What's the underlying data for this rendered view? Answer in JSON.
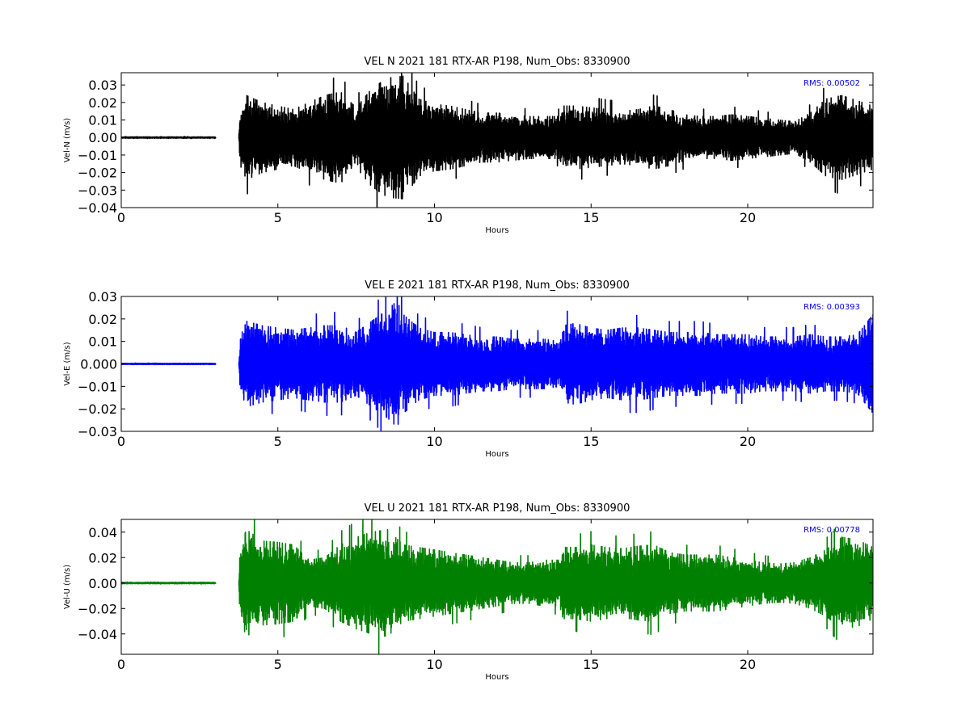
{
  "chart_data": [
    {
      "type": "line",
      "title": "VEL N 2021 181 RTX-AR  P198, Num_Obs: 8330900",
      "xlabel": "Hours",
      "ylabel": "Vel-N (m/s)",
      "xlim": [
        0,
        24
      ],
      "ylim": [
        -0.04,
        0.037
      ],
      "xticks": [
        0,
        5,
        10,
        15,
        20
      ],
      "xtick_labels": [
        "0",
        "5",
        "10",
        "15",
        "20"
      ],
      "yticks": [
        -0.04,
        -0.03,
        -0.02,
        -0.01,
        0.0,
        0.01,
        0.02,
        0.03
      ],
      "ytick_labels": [
        "−0.04",
        "−0.03",
        "−0.02",
        "−0.01",
        "0.00",
        "0.01",
        "0.02",
        "0.03"
      ],
      "color": "#000000",
      "rms_label": "RMS:  0.00502",
      "rms_color": "#0000ff",
      "grid": false,
      "envelope": {
        "x": [
          0,
          3.0,
          3.02,
          3.75,
          3.8,
          4.0,
          4.5,
          5.0,
          5.5,
          6.0,
          6.5,
          7.0,
          7.5,
          8.0,
          8.5,
          9.0,
          9.5,
          10.0,
          10.5,
          11.0,
          11.5,
          12.0,
          12.5,
          13.0,
          13.5,
          14.0,
          14.1,
          14.5,
          15.0,
          15.5,
          16.0,
          16.5,
          17.0,
          17.5,
          18.0,
          18.5,
          19.0,
          19.5,
          20.0,
          20.5,
          21.0,
          21.5,
          22.0,
          22.5,
          23.0,
          23.5,
          24.0
        ],
        "amp": [
          0.0004,
          0.0004,
          0,
          0,
          0.016,
          0.024,
          0.02,
          0.018,
          0.016,
          0.02,
          0.024,
          0.026,
          0.017,
          0.028,
          0.034,
          0.035,
          0.022,
          0.019,
          0.018,
          0.016,
          0.014,
          0.014,
          0.013,
          0.012,
          0.012,
          0.012,
          0.018,
          0.018,
          0.017,
          0.016,
          0.015,
          0.016,
          0.018,
          0.016,
          0.013,
          0.012,
          0.012,
          0.013,
          0.012,
          0.011,
          0.01,
          0.009,
          0.014,
          0.022,
          0.024,
          0.021,
          0.018
        ]
      }
    },
    {
      "type": "line",
      "title": "VEL E 2021 181 RTX-AR  P198, Num_Obs: 8330900",
      "xlabel": "Hours",
      "ylabel": "Vel-E (m/s)",
      "xlim": [
        0,
        24
      ],
      "ylim": [
        -0.03,
        0.03
      ],
      "xticks": [
        0,
        5,
        10,
        15,
        20
      ],
      "xtick_labels": [
        "0",
        "5",
        "10",
        "15",
        "20"
      ],
      "yticks": [
        -0.03,
        -0.02,
        -0.01,
        0.0,
        0.01,
        0.02,
        0.03
      ],
      "ytick_labels": [
        "−0.03",
        "−0.02",
        "−0.01",
        "0.000",
        "0.01",
        "0.02",
        "0.03"
      ],
      "color": "#0000ff",
      "rms_label": "RMS:  0.00393",
      "rms_color": "#0000ff",
      "grid": false,
      "envelope": {
        "x": [
          0,
          3.0,
          3.02,
          3.75,
          3.8,
          4.0,
          4.5,
          5.0,
          5.5,
          6.0,
          6.5,
          7.0,
          7.5,
          8.0,
          8.5,
          8.8,
          9.0,
          9.5,
          10.0,
          10.5,
          11.0,
          11.5,
          12.0,
          12.5,
          13.0,
          13.5,
          14.0,
          14.1,
          14.5,
          15.0,
          15.5,
          16.0,
          16.5,
          17.0,
          17.5,
          18.0,
          18.5,
          19.0,
          19.5,
          20.0,
          20.5,
          21.0,
          21.5,
          22.0,
          22.5,
          23.0,
          23.5,
          24.0
        ],
        "amp": [
          0.0003,
          0.0003,
          0,
          0,
          0.012,
          0.019,
          0.017,
          0.016,
          0.015,
          0.016,
          0.017,
          0.017,
          0.014,
          0.019,
          0.024,
          0.028,
          0.022,
          0.016,
          0.014,
          0.014,
          0.013,
          0.012,
          0.012,
          0.011,
          0.011,
          0.011,
          0.01,
          0.017,
          0.018,
          0.016,
          0.015,
          0.016,
          0.016,
          0.015,
          0.014,
          0.014,
          0.014,
          0.013,
          0.013,
          0.013,
          0.012,
          0.012,
          0.012,
          0.013,
          0.012,
          0.012,
          0.013,
          0.022
        ]
      }
    },
    {
      "type": "line",
      "title": "VEL U 2021 181 RTX-AR  P198, Num_Obs: 8330900",
      "xlabel": "Hours",
      "ylabel": "Vel-U (m/s)",
      "xlim": [
        0,
        24
      ],
      "ylim": [
        -0.056,
        0.05
      ],
      "xticks": [
        0,
        5,
        10,
        15,
        20
      ],
      "xtick_labels": [
        "0",
        "5",
        "10",
        "15",
        "20"
      ],
      "yticks": [
        -0.04,
        -0.02,
        0.0,
        0.02,
        0.04
      ],
      "ytick_labels": [
        "−0.04",
        "−0.02",
        "0.00",
        "0.02",
        "0.04"
      ],
      "color": "#008000",
      "rms_label": "RMS:  0.00778",
      "rms_color": "#0000ff",
      "grid": false,
      "envelope": {
        "x": [
          0,
          3.0,
          3.02,
          3.75,
          3.8,
          4.0,
          4.5,
          5.0,
          5.5,
          6.0,
          6.5,
          7.0,
          7.5,
          8.0,
          8.5,
          9.0,
          9.5,
          10.0,
          10.5,
          11.0,
          11.5,
          12.0,
          12.5,
          13.0,
          13.5,
          14.0,
          14.1,
          14.5,
          15.0,
          15.5,
          16.0,
          16.5,
          17.0,
          17.5,
          18.0,
          18.5,
          19.0,
          19.5,
          20.0,
          20.5,
          21.0,
          21.5,
          22.0,
          22.5,
          23.0,
          23.5,
          24.0
        ],
        "amp": [
          0.0006,
          0.0006,
          0,
          0,
          0.03,
          0.042,
          0.033,
          0.032,
          0.03,
          0.018,
          0.02,
          0.03,
          0.036,
          0.04,
          0.042,
          0.03,
          0.028,
          0.026,
          0.024,
          0.022,
          0.02,
          0.018,
          0.016,
          0.016,
          0.018,
          0.018,
          0.028,
          0.028,
          0.03,
          0.028,
          0.027,
          0.029,
          0.03,
          0.024,
          0.022,
          0.022,
          0.022,
          0.02,
          0.018,
          0.016,
          0.015,
          0.016,
          0.02,
          0.026,
          0.036,
          0.034,
          0.028
        ]
      }
    }
  ]
}
